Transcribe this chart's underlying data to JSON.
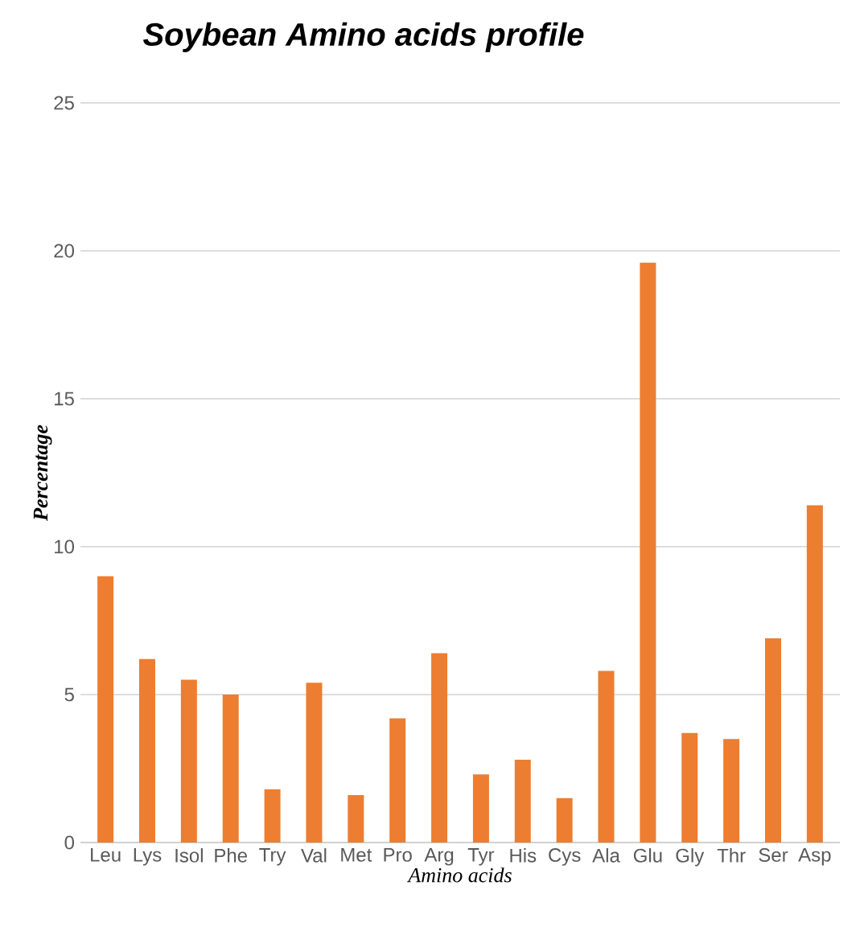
{
  "chart_data": {
    "type": "bar",
    "title": "Soybean Amino acids profile",
    "xlabel": "Amino acids",
    "ylabel": "Percentage",
    "categories": [
      "Leu",
      "Lys",
      "Isol",
      "Phe",
      "Try",
      "Val",
      "Met",
      "Pro",
      "Arg",
      "Tyr",
      "His",
      "Cys",
      "Ala",
      "Glu",
      "Gly",
      "Thr",
      "Ser",
      "Asp"
    ],
    "values": [
      9.0,
      6.2,
      5.5,
      5.0,
      1.8,
      5.4,
      1.6,
      4.2,
      6.4,
      2.3,
      2.8,
      1.5,
      5.8,
      19.6,
      3.7,
      3.5,
      6.9,
      11.4
    ],
    "color": "#ed7d31",
    "ylim": [
      0,
      25
    ],
    "yticks": [
      0,
      5,
      10,
      15,
      20,
      25
    ],
    "grid": "y"
  }
}
